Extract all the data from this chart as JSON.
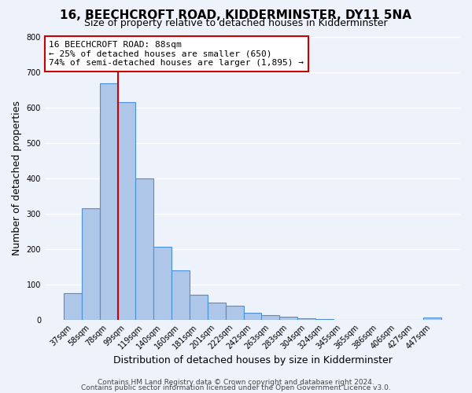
{
  "title": "16, BEECHCROFT ROAD, KIDDERMINSTER, DY11 5NA",
  "subtitle": "Size of property relative to detached houses in Kidderminster",
  "xlabel": "Distribution of detached houses by size in Kidderminster",
  "ylabel": "Number of detached properties",
  "bar_labels": [
    "37sqm",
    "58sqm",
    "78sqm",
    "99sqm",
    "119sqm",
    "140sqm",
    "160sqm",
    "181sqm",
    "201sqm",
    "222sqm",
    "242sqm",
    "263sqm",
    "283sqm",
    "304sqm",
    "324sqm",
    "345sqm",
    "365sqm",
    "386sqm",
    "406sqm",
    "427sqm",
    "447sqm"
  ],
  "bar_values": [
    75,
    315,
    668,
    615,
    400,
    205,
    138,
    70,
    48,
    38,
    20,
    12,
    8,
    3,
    1,
    0,
    0,
    0,
    0,
    0,
    5
  ],
  "bar_color": "#aec6e8",
  "bar_edge_color": "#4a90d9",
  "annotation_line1": "16 BEECHCROFT ROAD: 88sqm",
  "annotation_line2": "← 25% of detached houses are smaller (650)",
  "annotation_line3": "74% of semi-detached houses are larger (1,895) →",
  "annotation_box_color": "#ffffff",
  "annotation_box_edge": "#cc0000",
  "vline_color": "#cc0000",
  "ylim": [
    0,
    800
  ],
  "yticks": [
    0,
    100,
    200,
    300,
    400,
    500,
    600,
    700,
    800
  ],
  "footer1": "Contains HM Land Registry data © Crown copyright and database right 2024.",
  "footer2": "Contains public sector information licensed under the Open Government Licence v3.0.",
  "background_color": "#eef2fa",
  "grid_color": "#ffffff",
  "title_fontsize": 11,
  "subtitle_fontsize": 9,
  "axis_label_fontsize": 9,
  "tick_fontsize": 7,
  "annotation_fontsize": 8,
  "footer_fontsize": 6.5
}
